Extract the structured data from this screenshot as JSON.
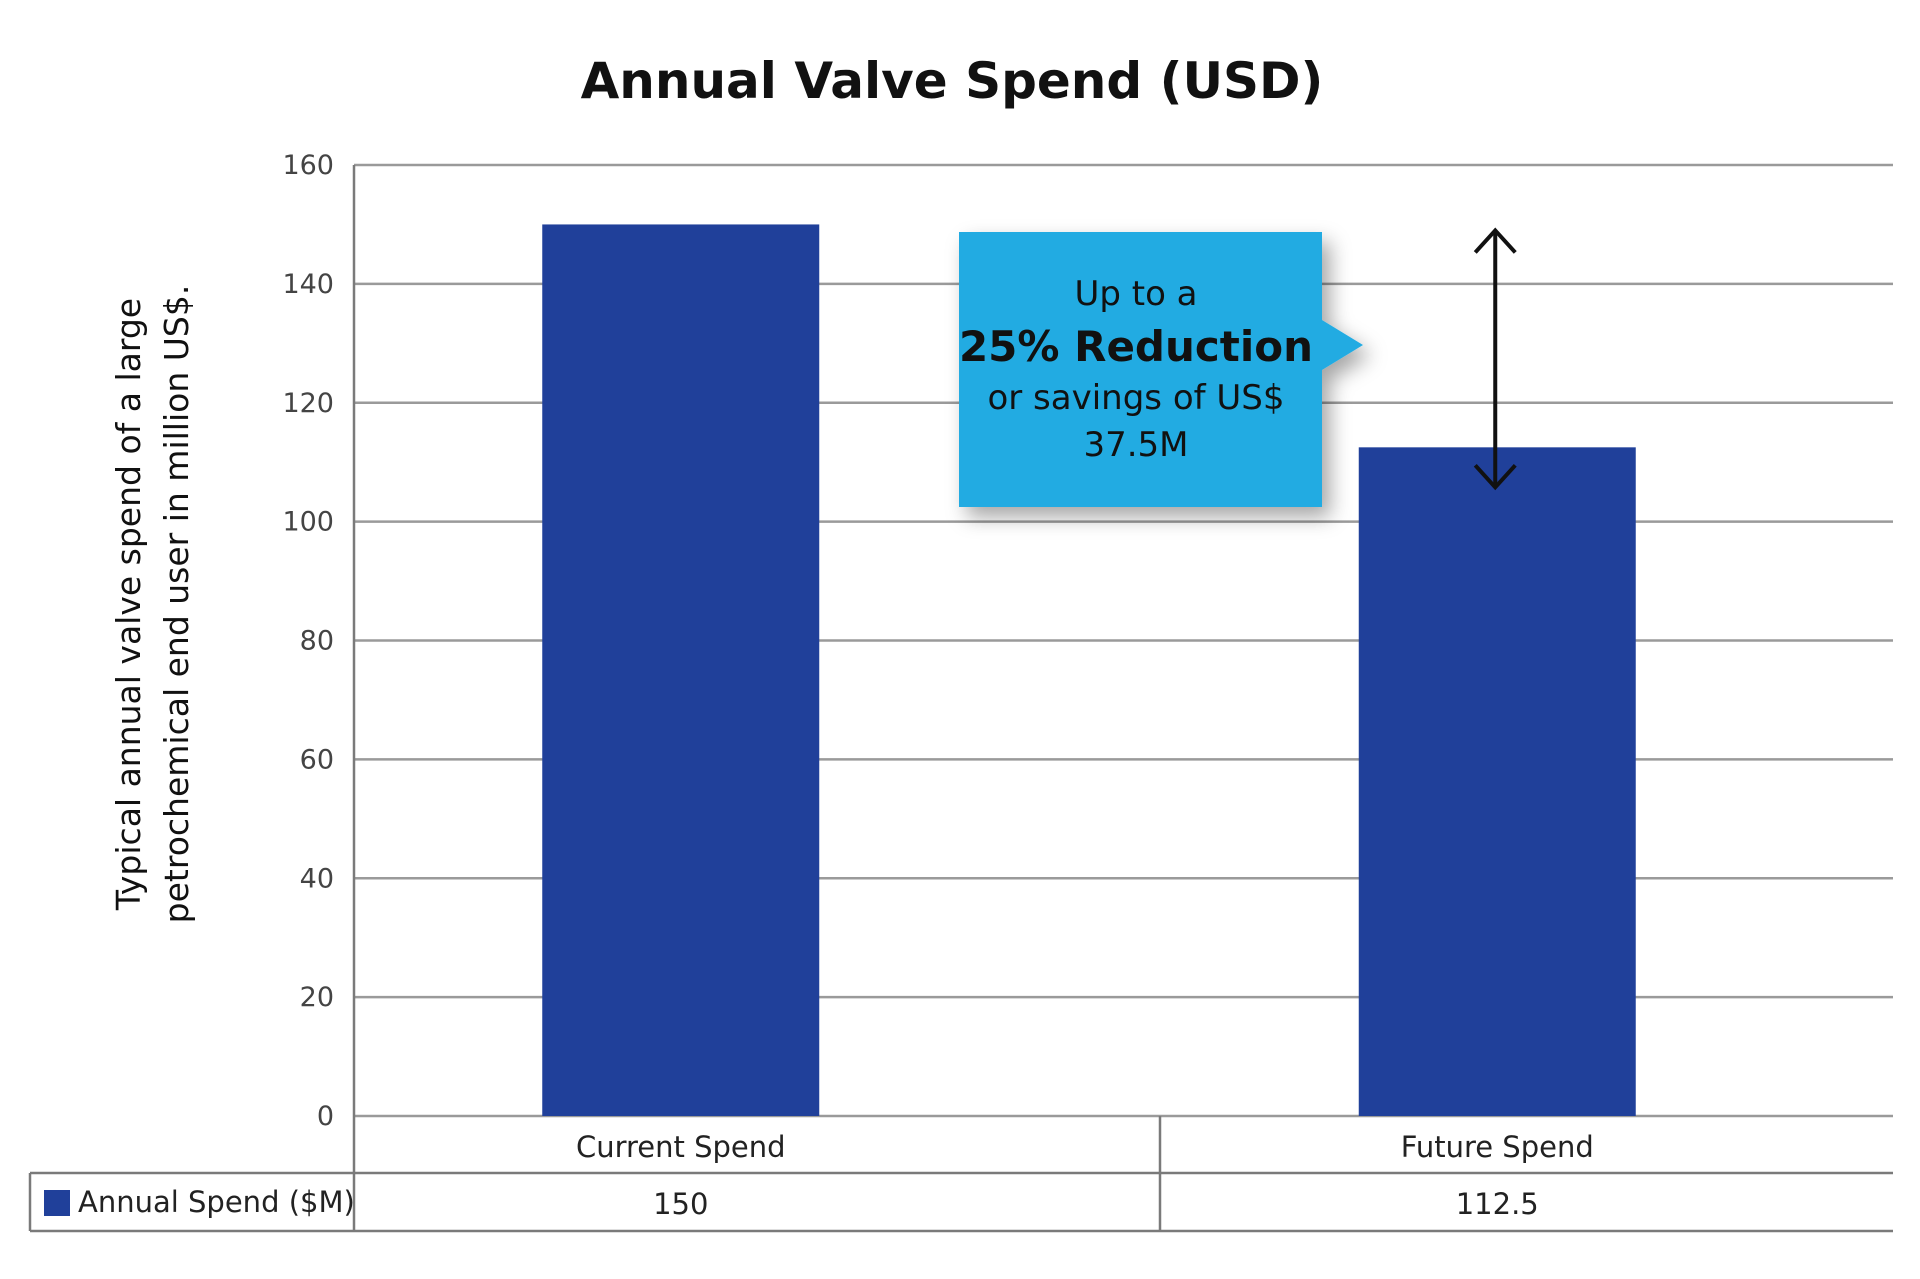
{
  "chart_data": {
    "type": "bar",
    "title": "Annual Valve Spend (USD)",
    "ylabel_lines": [
      "Typical annual valve spend of a large",
      "petrochemical end user in million US$."
    ],
    "xlabel": "",
    "categories": [
      "Current Spend",
      "Future Spend"
    ],
    "series": [
      {
        "name": "Annual Spend ($M)",
        "values": [
          150,
          112.5
        ],
        "color": "#20409a"
      }
    ],
    "ylim": [
      0,
      160
    ],
    "yticks": [
      "0",
      "20",
      "40",
      "60",
      "80",
      "100",
      "120",
      "140",
      "160"
    ],
    "grid": true,
    "data_table": {
      "legend_label": "Annual Spend ($M)",
      "values": [
        "150",
        "112.5"
      ]
    },
    "annotation": {
      "line1": "Up to a",
      "line2": "25% Reduction",
      "line3": "or savings of US$",
      "line4": "37.5M",
      "color": "#21abe2",
      "arrow_between": [
        150,
        112.5
      ]
    }
  }
}
